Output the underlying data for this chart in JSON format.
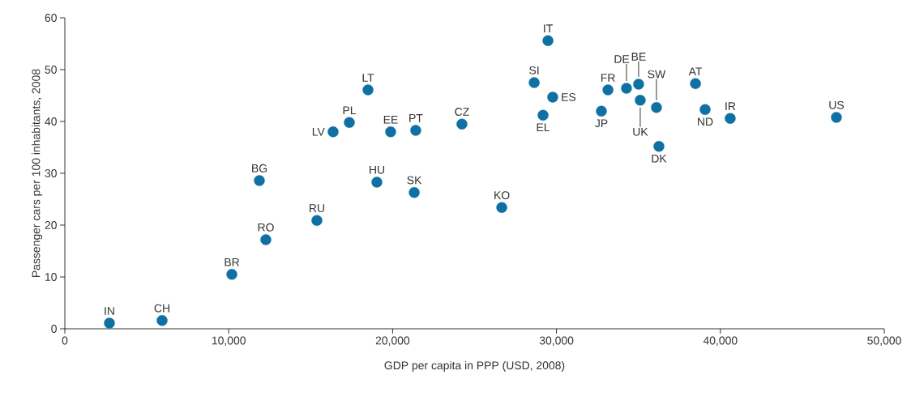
{
  "chart_data": {
    "type": "scatter",
    "xlabel": "GDP per capita in PPP (USD, 2008)",
    "ylabel": "Passenger cars per 100 inhabitants, 2008",
    "x": [
      2720,
      5935,
      10190,
      11870,
      12265,
      15380,
      16370,
      17360,
      18500,
      19040,
      19880,
      21320,
      21410,
      24230,
      26660,
      28640,
      29180,
      29480,
      29770,
      32740,
      33140,
      34270,
      35010,
      35110,
      36100,
      36250,
      38480,
      39070,
      40600,
      47080
    ],
    "values": [
      1.1,
      1.6,
      10.5,
      28.6,
      17.2,
      20.9,
      38.0,
      39.8,
      46.1,
      28.3,
      38.0,
      26.3,
      38.3,
      39.5,
      23.4,
      47.5,
      41.2,
      55.6,
      44.7,
      42.0,
      46.1,
      46.4,
      47.2,
      44.1,
      42.7,
      35.2,
      47.3,
      42.3,
      40.6,
      40.8
    ],
    "color": "#0e70a3",
    "marker": "circle",
    "xlim": [
      0,
      50000
    ],
    "xticks": [
      0,
      {
        "value": 10000,
        "label": "10,000"
      },
      {
        "value": 20000,
        "label": "20,000"
      },
      {
        "value": 30000,
        "label": "30,000"
      },
      {
        "value": 40000,
        "label": "40,000"
      },
      {
        "value": 50000,
        "label": "50,000"
      }
    ],
    "ylim": [
      0,
      60
    ],
    "yticks": [
      0,
      10,
      20,
      30,
      40,
      50,
      60
    ],
    "annotations": [
      {
        "text": "IN",
        "x": 2720,
        "y": 1.1
      },
      {
        "text": "CH",
        "x": 5935,
        "y": 1.6
      },
      {
        "text": "BR",
        "x": 10190,
        "y": 10.5
      },
      {
        "text": "BG",
        "x": 11870,
        "y": 28.6
      },
      {
        "text": "RO",
        "x": 12265,
        "y": 17.2
      },
      {
        "text": "RU",
        "x": 15380,
        "y": 20.9
      },
      {
        "text": "LV",
        "x": 16370,
        "y": 38.0
      },
      {
        "text": "PL",
        "x": 17360,
        "y": 39.8
      },
      {
        "text": "LT",
        "x": 18500,
        "y": 46.1
      },
      {
        "text": "HU",
        "x": 19040,
        "y": 28.3
      },
      {
        "text": "EE",
        "x": 19880,
        "y": 38.0
      },
      {
        "text": "SK",
        "x": 21320,
        "y": 26.3
      },
      {
        "text": "PT",
        "x": 21410,
        "y": 38.3
      },
      {
        "text": "CZ",
        "x": 24230,
        "y": 39.5
      },
      {
        "text": "KO",
        "x": 26660,
        "y": 23.4
      },
      {
        "text": "SI",
        "x": 28640,
        "y": 47.5
      },
      {
        "text": "EL",
        "x": 29180,
        "y": 41.2
      },
      {
        "text": "IT",
        "x": 29480,
        "y": 55.6
      },
      {
        "text": "ES",
        "x": 29770,
        "y": 44.7
      },
      {
        "text": "JP",
        "x": 32740,
        "y": 42.0
      },
      {
        "text": "FR",
        "x": 33140,
        "y": 46.1
      },
      {
        "text": "DE",
        "x": 34270,
        "y": 46.4
      },
      {
        "text": "BE",
        "x": 35010,
        "y": 47.2
      },
      {
        "text": "UK",
        "x": 35110,
        "y": 44.1
      },
      {
        "text": "SW",
        "x": 36100,
        "y": 42.7
      },
      {
        "text": "DK",
        "x": 36250,
        "y": 35.2
      },
      {
        "text": "AT",
        "x": 38480,
        "y": 47.3
      },
      {
        "text": "ND",
        "x": 39070,
        "y": 42.3
      },
      {
        "text": "IR",
        "x": 40600,
        "y": 40.6
      },
      {
        "text": "US",
        "x": 47080,
        "y": 40.8
      }
    ]
  }
}
